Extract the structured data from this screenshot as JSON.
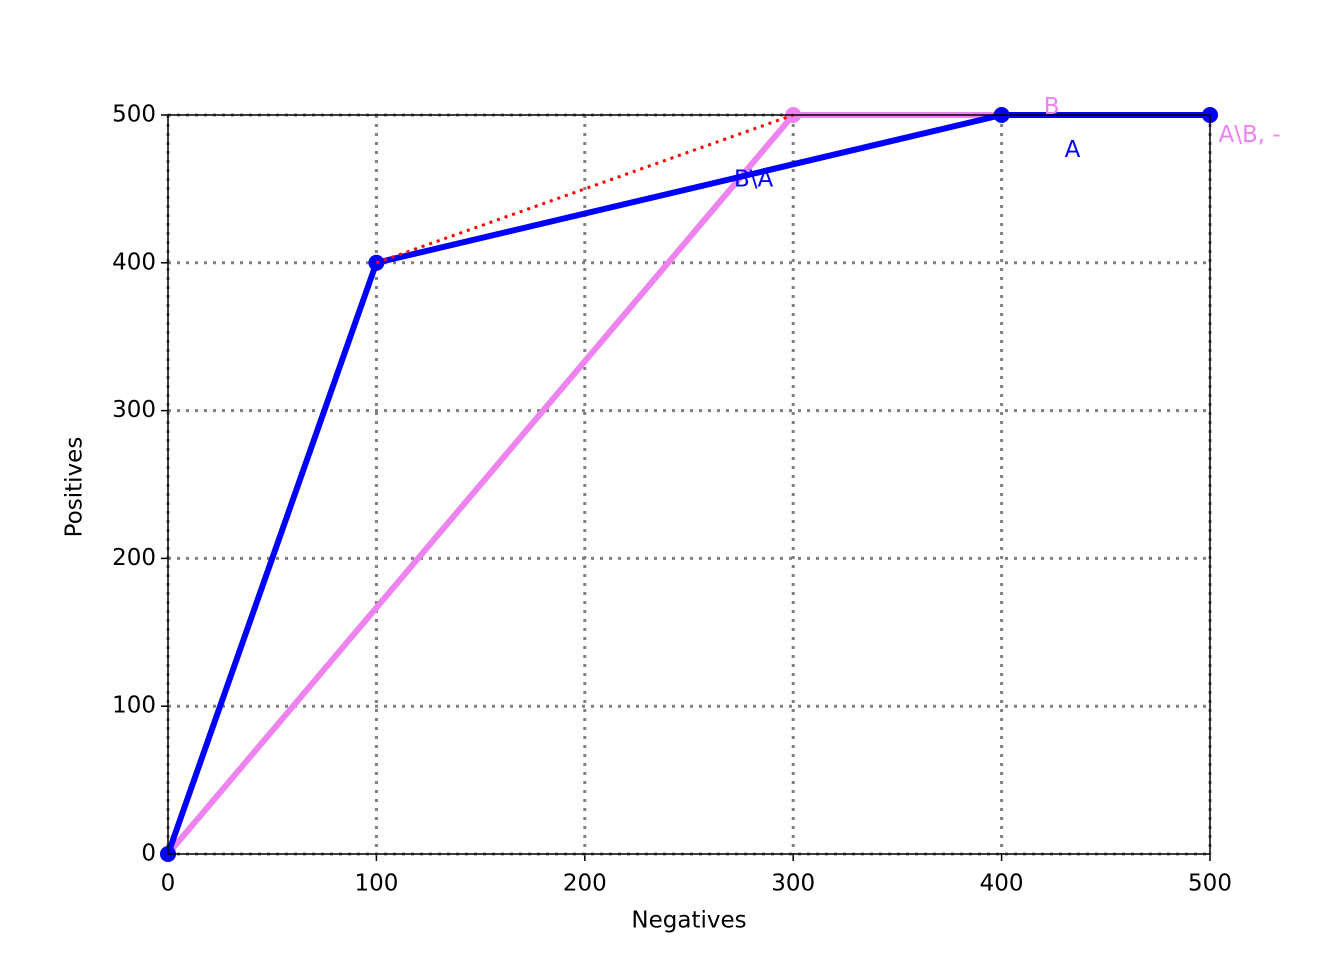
{
  "chart_data": {
    "type": "line",
    "xlabel": "Negatives",
    "ylabel": "Positives",
    "xlim": [
      0,
      500
    ],
    "ylim": [
      0,
      500
    ],
    "xticks": [
      0,
      100,
      200,
      300,
      400,
      500
    ],
    "yticks": [
      0,
      100,
      200,
      300,
      400,
      500
    ],
    "grid": true,
    "series": [
      {
        "color": "#ee82ee",
        "x": [
          0,
          300,
          500
        ],
        "values": [
          0,
          500,
          500
        ],
        "dash": "solid",
        "width": 6,
        "markers": true
      },
      {
        "color": "#0000ff",
        "x": [
          0,
          100,
          400,
          500
        ],
        "values": [
          0,
          400,
          500,
          500
        ],
        "dash": "solid",
        "width": 6,
        "markers": true
      },
      {
        "color": "#ff0000",
        "x": [
          100,
          300
        ],
        "values": [
          400,
          500
        ],
        "dash": "dotted",
        "width": 3,
        "markers": false
      }
    ],
    "annotations": [
      {
        "text": "B",
        "x": 424,
        "y": 505,
        "color": "#ee82ee"
      },
      {
        "text": "A\\B, -",
        "x": 519,
        "y": 486,
        "color": "#ee82ee"
      },
      {
        "text": "A",
        "x": 434,
        "y": 476,
        "color": "#0000ff"
      },
      {
        "text": "B\\A",
        "x": 281,
        "y": 456,
        "color": "#0000ff"
      }
    ]
  }
}
